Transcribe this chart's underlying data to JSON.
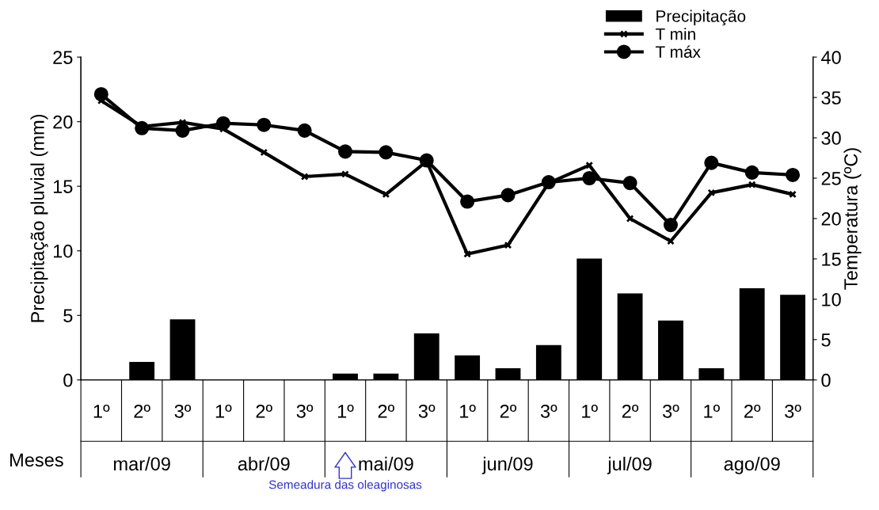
{
  "chart_data": {
    "type": "bar",
    "categories": [
      "1º",
      "2º",
      "3º",
      "1º",
      "2º",
      "3º",
      "1º",
      "2º",
      "3º",
      "1º",
      "2º",
      "3º",
      "1º",
      "2º",
      "3º",
      "1º",
      "2º",
      "3º"
    ],
    "series": [
      {
        "name": "Precipitação",
        "color": "#000000",
        "values": [
          0,
          1.4,
          4.7,
          0,
          0,
          0,
          0.5,
          0.5,
          3.6,
          1.9,
          0.9,
          2.7,
          9.4,
          6.7,
          4.6,
          0.9,
          7.1,
          6.6
        ]
      },
      {
        "name": "T min",
        "type": "line",
        "axis": "y2",
        "marker": "cross",
        "color": "#000000",
        "values": [
          34.6,
          31.4,
          31.9,
          31.1,
          28.2,
          25.2,
          25.5,
          23.0,
          27.1,
          15.6,
          16.7,
          24.4,
          26.6,
          20.0,
          17.2,
          23.2,
          24.2,
          23.0
        ]
      },
      {
        "name": "T máx",
        "type": "line",
        "axis": "y2",
        "marker": "circle",
        "color": "#000000",
        "values": [
          35.4,
          31.2,
          30.9,
          31.8,
          31.6,
          30.9,
          28.3,
          28.2,
          27.2,
          22.1,
          22.9,
          24.5,
          25.0,
          24.4,
          19.2,
          26.9,
          25.7,
          25.4
        ]
      }
    ],
    "ylabel": "Precipitação pluvial (mm)",
    "y2label": "Temperatura (ºC)",
    "ylim": [
      0,
      25
    ],
    "yticks": [
      0,
      5,
      10,
      15,
      20,
      25
    ],
    "y2lim": [
      0,
      40
    ],
    "y2ticks": [
      0,
      5,
      10,
      15,
      20,
      25,
      30,
      35,
      40
    ],
    "annotations": [
      "Meses",
      "mar/09",
      "abr/09",
      "mai/09",
      "jun/09",
      "jul/09",
      "ago/09",
      "Semeadura das oleaginosas"
    ],
    "legend": "top right",
    "grid": false,
    "line_style": "solid"
  }
}
